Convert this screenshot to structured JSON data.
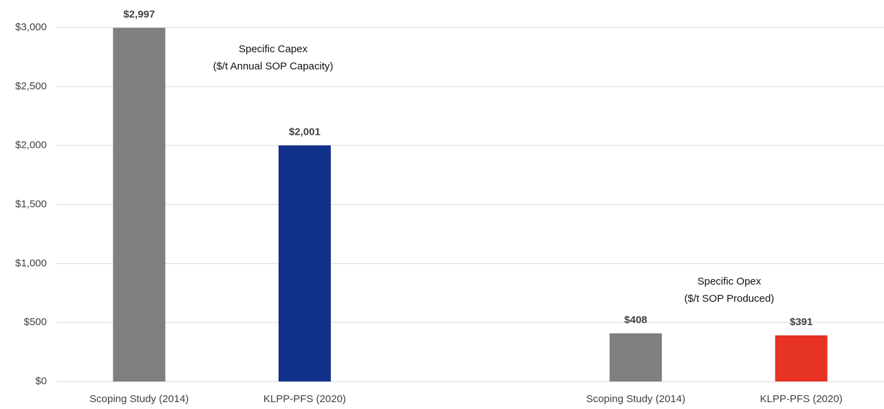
{
  "chart_data": {
    "type": "bar",
    "categories": [
      "Scoping Study (2014)",
      "KLPP-PFS (2020)",
      null,
      "Scoping Study (2014)",
      "KLPP-PFS (2020)"
    ],
    "values": [
      2997,
      2001,
      null,
      408,
      391
    ],
    "value_labels": [
      "$2,997",
      "$2,001",
      null,
      "$408",
      "$391"
    ],
    "colors": [
      "#7f7f7f",
      "#12318a",
      null,
      "#7f7f7f",
      "#e63323"
    ],
    "annotations": [
      "Specific Capex",
      "($/t Annual SOP Capacity)",
      "Specific Opex",
      "($/t SOP Produced)"
    ],
    "ylim": [
      0,
      3000
    ],
    "yticks": [
      {
        "value": 0,
        "label": "$0"
      },
      {
        "value": 500,
        "label": "$500"
      },
      {
        "value": 1000,
        "label": "$1,000"
      },
      {
        "value": 1500,
        "label": "$1,500"
      },
      {
        "value": 2000,
        "label": "$2,000"
      },
      {
        "value": 2500,
        "label": "$2,500"
      },
      {
        "value": 3000,
        "label": "$3,000"
      }
    ],
    "grid": true
  }
}
